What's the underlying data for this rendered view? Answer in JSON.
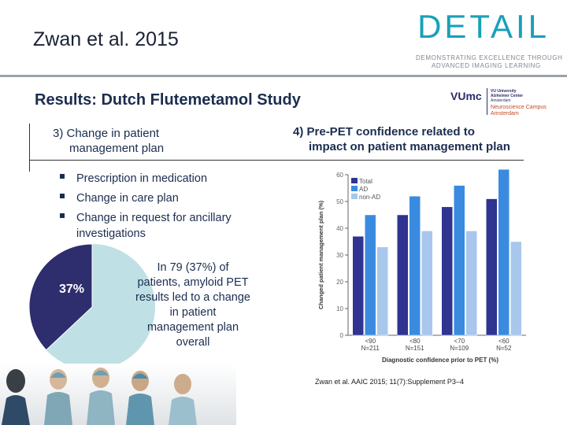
{
  "header": {
    "title": "Zwan et al. 2015",
    "logo_word": "DETAIL",
    "logo_tagline_1": "DEMONSTRATING EXCELLENCE THROUGH",
    "logo_tagline_2": "ADVANCED IMAGING LEARNING"
  },
  "slide": {
    "title": "Results: Dutch Flutemetamol Study",
    "partner_logo": {
      "vumc": "VUmc",
      "line1": "VU University",
      "line2": "Alzheimer Center",
      "line3": "Amsterdam",
      "campus1": "Neuroscience Campus",
      "campus2": "Amsterdam"
    }
  },
  "section3": {
    "title_line1": "3) Change in patient",
    "title_line2": "management plan",
    "bullets": [
      "Prescription in medication",
      "Change in care plan",
      "Change in request for ancillary investigations"
    ],
    "pie_label": "37%",
    "pie_fraction": 0.37,
    "colors": {
      "slice": "#2e2d6e",
      "rest": "#bfe0e4"
    },
    "callout": "In 79 (37%) of patients, amyloid PET results led to a change in patient management plan overall"
  },
  "section4": {
    "title_line1": "4) Pre-PET confidence related to",
    "title_line2": "impact on patient management plan"
  },
  "chart_data": {
    "type": "bar",
    "ylabel": "Changed patient management plan (%)",
    "xlabel": "Diagnostic confidence prior to PET (%)",
    "ylim": [
      0,
      60
    ],
    "yticks": [
      "0",
      "10",
      "20",
      "30",
      "40",
      "50",
      "60"
    ],
    "categories": [
      {
        "line1": "<90",
        "line2": "N=211"
      },
      {
        "line1": "<80",
        "line2": "N=151"
      },
      {
        "line1": "<70",
        "line2": "N=109"
      },
      {
        "line1": "<60",
        "line2": "N=52"
      }
    ],
    "series": [
      {
        "name": "Total",
        "values": [
          37,
          45,
          48,
          51
        ],
        "color": "#2f3491"
      },
      {
        "name": "AD",
        "values": [
          45,
          52,
          56,
          62
        ],
        "color": "#3a8be0"
      },
      {
        "name": "non-AD",
        "values": [
          33,
          39,
          39,
          35
        ],
        "color": "#a9c7ec"
      }
    ],
    "legend": "top-left",
    "grid": false
  },
  "citation": "Zwan et al. AAIC 2015; 11(7):Supplement P3–4"
}
